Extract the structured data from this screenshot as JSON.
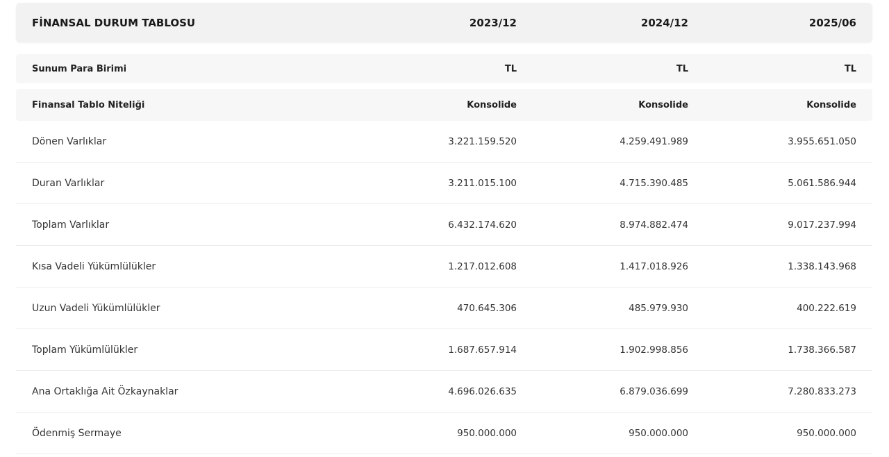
{
  "table": {
    "title": "FİNANSAL DURUM TABLOSU",
    "periods": [
      "2023/12",
      "2024/12",
      "2025/06"
    ],
    "meta": [
      {
        "label": "Sunum Para Birimi",
        "values": [
          "TL",
          "TL",
          "TL"
        ]
      },
      {
        "label": "Finansal Tablo Niteliği",
        "values": [
          "Konsolide",
          "Konsolide",
          "Konsolide"
        ]
      }
    ],
    "rows": [
      {
        "label": "Dönen Varlıklar",
        "values": [
          "3.221.159.520",
          "4.259.491.989",
          "3.955.651.050"
        ]
      },
      {
        "label": "Duran Varlıklar",
        "values": [
          "3.211.015.100",
          "4.715.390.485",
          "5.061.586.944"
        ]
      },
      {
        "label": "Toplam Varlıklar",
        "values": [
          "6.432.174.620",
          "8.974.882.474",
          "9.017.237.994"
        ]
      },
      {
        "label": "Kısa Vadeli Yükümlülükler",
        "values": [
          "1.217.012.608",
          "1.417.018.926",
          "1.338.143.968"
        ]
      },
      {
        "label": "Uzun Vadeli Yükümlülükler",
        "values": [
          "470.645.306",
          "485.979.930",
          "400.222.619"
        ]
      },
      {
        "label": "Toplam Yükümlülükler",
        "values": [
          "1.687.657.914",
          "1.902.998.856",
          "1.738.366.587"
        ]
      },
      {
        "label": "Ana Ortaklığa Ait Özkaynaklar",
        "values": [
          "4.696.026.635",
          "6.879.036.699",
          "7.280.833.273"
        ]
      },
      {
        "label": "Ödenmiş Sermaye",
        "values": [
          "950.000.000",
          "950.000.000",
          "950.000.000"
        ]
      }
    ]
  }
}
